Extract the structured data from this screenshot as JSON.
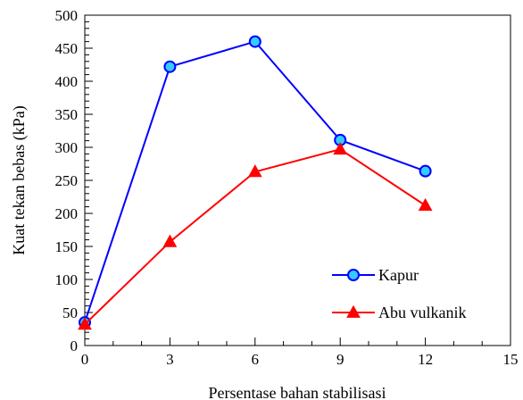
{
  "chart_data": {
    "type": "line",
    "title": "",
    "xlabel": "Persentase bahan stabilisasi",
    "ylabel": "Kuat tekan bebas (kPa)",
    "xlim": [
      0,
      15
    ],
    "ylim": [
      0,
      500
    ],
    "x_ticks": [
      0,
      3,
      6,
      9,
      12,
      15
    ],
    "y_ticks": [
      0,
      50,
      100,
      150,
      200,
      250,
      300,
      350,
      400,
      450,
      500
    ],
    "x_minor_step": 1,
    "y_minor_step": 10,
    "grid": false,
    "legend_position": "bottom-right",
    "series": [
      {
        "name": "Kapur",
        "marker": "circle",
        "line_color": "#0000ff",
        "marker_fill": "#33ccff",
        "marker_stroke": "#0000ff",
        "points": [
          {
            "x": 0,
            "y": 35
          },
          {
            "x": 3,
            "y": 422
          },
          {
            "x": 6,
            "y": 460
          },
          {
            "x": 9,
            "y": 311
          },
          {
            "x": 12,
            "y": 264
          }
        ]
      },
      {
        "name": "Abu vulkanik",
        "marker": "triangle",
        "line_color": "#ff0000",
        "marker_fill": "#ff0000",
        "marker_stroke": "#ff0000",
        "points": [
          {
            "x": 0,
            "y": 32
          },
          {
            "x": 3,
            "y": 157
          },
          {
            "x": 6,
            "y": 263
          },
          {
            "x": 9,
            "y": 297
          },
          {
            "x": 12,
            "y": 212
          }
        ]
      }
    ]
  }
}
